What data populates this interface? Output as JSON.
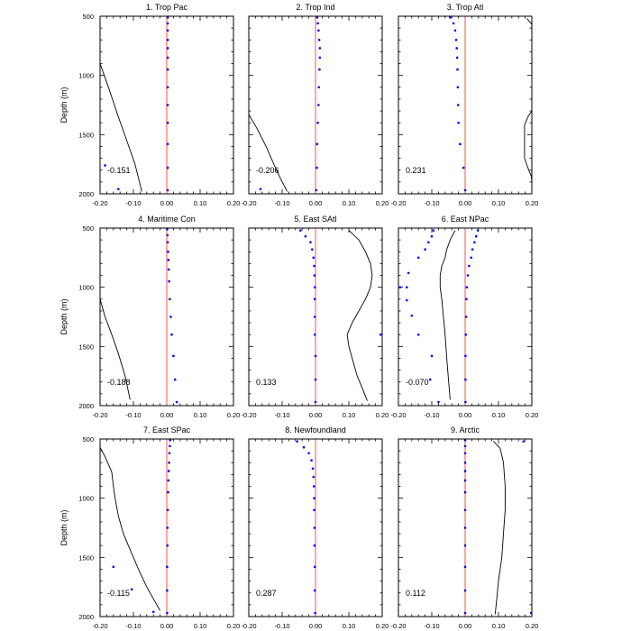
{
  "shared": {
    "ylabel": "Depth (m)",
    "xlim": [
      -0.2,
      0.2
    ],
    "ylim": [
      2000,
      500
    ],
    "xticks": [
      -0.2,
      -0.1,
      0.0,
      0.1,
      0.2
    ],
    "xtick_labels": [
      "-0.20",
      "-0.10",
      "0.00",
      "0.10",
      "0.20"
    ],
    "yticks": [
      500,
      1000,
      1500,
      2000
    ],
    "ytick_labels": [
      "500",
      "1000",
      "1500",
      "2000"
    ],
    "zero_line_color": "#ff4d4d",
    "dot_color": "#0000ff",
    "curve_color": "#000000"
  },
  "chart_data": [
    {
      "type": "scatter",
      "title": "1. Trop Pac",
      "annotation": "-0.151",
      "dots": [
        [
          0.003,
          510
        ],
        [
          0.003,
          560
        ],
        [
          0.003,
          620
        ],
        [
          0.003,
          700
        ],
        [
          0.003,
          770
        ],
        [
          0.003,
          850
        ],
        [
          0.003,
          950
        ],
        [
          0.003,
          1100
        ],
        [
          0.003,
          1250
        ],
        [
          0.003,
          1400
        ],
        [
          0.003,
          1580
        ],
        [
          0.003,
          1780
        ],
        [
          0.003,
          1970
        ],
        [
          -0.185,
          1760
        ],
        [
          -0.145,
          1960
        ]
      ],
      "curve": [
        [
          -0.2,
          900
        ],
        [
          -0.175,
          1100
        ],
        [
          -0.145,
          1350
        ],
        [
          -0.12,
          1550
        ],
        [
          -0.095,
          1750
        ],
        [
          -0.075,
          1980
        ]
      ]
    },
    {
      "type": "scatter",
      "title": "2. Trop Ind",
      "annotation": "-0.206",
      "dots": [
        [
          0.005,
          510
        ],
        [
          0.007,
          560
        ],
        [
          0.009,
          620
        ],
        [
          0.011,
          700
        ],
        [
          0.013,
          770
        ],
        [
          0.013,
          850
        ],
        [
          0.012,
          950
        ],
        [
          0.01,
          1100
        ],
        [
          0.009,
          1250
        ],
        [
          0.007,
          1400
        ],
        [
          0.005,
          1580
        ],
        [
          0.004,
          1780
        ],
        [
          0.002,
          1970
        ],
        [
          -0.165,
          1960
        ]
      ],
      "curve": [
        [
          -0.2,
          1330
        ],
        [
          -0.175,
          1450
        ],
        [
          -0.148,
          1600
        ],
        [
          -0.125,
          1750
        ],
        [
          -0.105,
          1870
        ],
        [
          -0.085,
          1980
        ]
      ]
    },
    {
      "type": "scatter",
      "title": "3. Trop Atl",
      "annotation": "0.231",
      "dots": [
        [
          -0.045,
          510
        ],
        [
          -0.035,
          560
        ],
        [
          -0.03,
          620
        ],
        [
          -0.027,
          700
        ],
        [
          -0.025,
          770
        ],
        [
          -0.024,
          850
        ],
        [
          -0.023,
          950
        ],
        [
          -0.022,
          1100
        ],
        [
          -0.021,
          1250
        ],
        [
          -0.02,
          1400
        ],
        [
          -0.015,
          1580
        ],
        [
          -0.005,
          1780
        ],
        [
          0.0,
          1970
        ]
      ],
      "curve": [
        [
          0.185,
          520
        ],
        [
          0.195,
          550
        ],
        [
          0.2,
          570
        ],
        null,
        [
          0.2,
          1300
        ],
        [
          0.188,
          1350
        ],
        [
          0.178,
          1420
        ],
        [
          0.178,
          1700
        ],
        [
          0.188,
          1780
        ],
        [
          0.198,
          1850
        ],
        [
          0.2,
          1890
        ]
      ]
    },
    {
      "type": "scatter",
      "title": "4. Maritime Con",
      "annotation": "-0.188",
      "dots": [
        [
          0.001,
          510
        ],
        [
          0.002,
          560
        ],
        [
          0.003,
          620
        ],
        [
          0.004,
          700
        ],
        [
          0.005,
          770
        ],
        [
          0.006,
          850
        ],
        [
          0.007,
          950
        ],
        [
          0.009,
          1100
        ],
        [
          0.012,
          1250
        ],
        [
          0.015,
          1400
        ],
        [
          0.02,
          1580
        ],
        [
          0.025,
          1780
        ],
        [
          0.03,
          1970
        ]
      ],
      "curve": [
        [
          -0.2,
          1100
        ],
        [
          -0.185,
          1250
        ],
        [
          -0.165,
          1400
        ],
        [
          -0.145,
          1560
        ],
        [
          -0.125,
          1750
        ],
        [
          -0.11,
          1950
        ]
      ]
    },
    {
      "type": "scatter",
      "title": "5. East SAtl",
      "annotation": "0.133",
      "dots": [
        [
          -0.045,
          520
        ],
        [
          -0.03,
          570
        ],
        [
          -0.015,
          620
        ],
        [
          -0.01,
          680
        ],
        [
          -0.006,
          750
        ],
        [
          -0.004,
          820
        ],
        [
          -0.003,
          900
        ],
        [
          -0.002,
          1000
        ],
        [
          -0.002,
          1100
        ],
        [
          -0.002,
          1250
        ],
        [
          -0.002,
          1400
        ],
        [
          0.0,
          1580
        ],
        [
          0.0,
          1780
        ],
        [
          0.0,
          1970
        ],
        [
          0.195,
          1400
        ]
      ],
      "curve": [
        [
          0.1,
          520
        ],
        [
          0.13,
          600
        ],
        [
          0.15,
          700
        ],
        [
          0.165,
          800
        ],
        [
          0.17,
          900
        ],
        [
          0.165,
          1000
        ],
        [
          0.15,
          1100
        ],
        [
          0.13,
          1200
        ],
        [
          0.11,
          1300
        ],
        [
          0.095,
          1400
        ],
        [
          0.1,
          1500
        ],
        [
          0.11,
          1600
        ],
        [
          0.125,
          1750
        ],
        [
          0.14,
          1850
        ],
        [
          0.155,
          1960
        ]
      ]
    },
    {
      "type": "scatter",
      "title": "6. East NPac",
      "annotation": "-0.070",
      "dots": [
        [
          -0.095,
          520
        ],
        [
          -0.1,
          570
        ],
        [
          -0.11,
          620
        ],
        [
          -0.12,
          680
        ],
        [
          -0.14,
          750
        ],
        [
          -0.17,
          880
        ],
        [
          -0.175,
          1000
        ],
        [
          -0.195,
          1000
        ],
        [
          -0.175,
          1110
        ],
        [
          -0.16,
          1240
        ],
        [
          -0.14,
          1400
        ],
        [
          -0.1,
          1580
        ],
        [
          -0.105,
          1780
        ],
        [
          -0.08,
          1970
        ],
        [
          0.038,
          520
        ],
        [
          0.033,
          570
        ],
        [
          0.028,
          620
        ],
        [
          0.022,
          680
        ],
        [
          0.018,
          750
        ],
        [
          0.012,
          820
        ],
        [
          0.008,
          900
        ],
        [
          0.005,
          1000
        ],
        [
          0.004,
          1100
        ],
        [
          0.003,
          1250
        ],
        [
          0.002,
          1400
        ],
        [
          0.001,
          1580
        ],
        [
          0.001,
          1780
        ],
        [
          0.001,
          1970
        ]
      ],
      "curve": [
        [
          -0.03,
          520
        ],
        [
          -0.045,
          600
        ],
        [
          -0.055,
          680
        ],
        [
          -0.06,
          750
        ],
        [
          -0.07,
          820
        ],
        [
          -0.075,
          900
        ],
        [
          -0.075,
          1000
        ],
        [
          -0.07,
          1100
        ],
        [
          -0.065,
          1250
        ],
        [
          -0.06,
          1400
        ],
        [
          -0.055,
          1600
        ],
        [
          -0.05,
          1780
        ],
        [
          -0.045,
          1950
        ]
      ]
    },
    {
      "type": "scatter",
      "title": "7. East SPac",
      "annotation": "-0.115",
      "dots": [
        [
          0.01,
          510
        ],
        [
          0.009,
          560
        ],
        [
          0.008,
          620
        ],
        [
          0.007,
          700
        ],
        [
          0.006,
          770
        ],
        [
          0.005,
          850
        ],
        [
          0.004,
          950
        ],
        [
          0.003,
          1100
        ],
        [
          0.002,
          1250
        ],
        [
          0.002,
          1400
        ],
        [
          0.001,
          1580
        ],
        [
          0.001,
          1780
        ],
        [
          0.001,
          1970
        ],
        [
          -0.16,
          1580
        ],
        [
          -0.105,
          1770
        ],
        [
          -0.04,
          1960
        ]
      ],
      "curve": [
        [
          -0.2,
          570
        ],
        [
          -0.185,
          650
        ],
        [
          -0.165,
          780
        ],
        [
          -0.16,
          900
        ],
        [
          -0.155,
          1000
        ],
        [
          -0.145,
          1150
        ],
        [
          -0.13,
          1300
        ],
        [
          -0.115,
          1400
        ],
        [
          -0.1,
          1500
        ],
        [
          -0.085,
          1600
        ],
        [
          -0.06,
          1750
        ],
        [
          -0.04,
          1850
        ],
        [
          -0.02,
          1950
        ]
      ]
    },
    {
      "type": "scatter",
      "title": "8. Newfoundland",
      "annotation": "0.287",
      "dots": [
        [
          -0.055,
          520
        ],
        [
          -0.035,
          570
        ],
        [
          -0.02,
          620
        ],
        [
          -0.012,
          680
        ],
        [
          -0.008,
          750
        ],
        [
          -0.006,
          820
        ],
        [
          -0.005,
          900
        ],
        [
          -0.004,
          1000
        ],
        [
          -0.004,
          1100
        ],
        [
          -0.003,
          1250
        ],
        [
          -0.003,
          1400
        ],
        [
          -0.002,
          1580
        ],
        [
          -0.002,
          1780
        ],
        [
          -0.001,
          1970
        ]
      ],
      "curve": []
    },
    {
      "type": "scatter",
      "title": "9. Arctic",
      "annotation": "0.112",
      "dots": [
        [
          0.175,
          520
        ],
        [
          0.0,
          510
        ],
        [
          0.0,
          560
        ],
        [
          0.0,
          620
        ],
        [
          0.0,
          700
        ],
        [
          0.0,
          770
        ],
        [
          0.0,
          850
        ],
        [
          0.0,
          950
        ],
        [
          0.0,
          1100
        ],
        [
          0.0,
          1250
        ],
        [
          0.0,
          1400
        ],
        [
          0.0,
          1580
        ],
        [
          0.0,
          1780
        ],
        [
          0.0,
          1970
        ],
        [
          0.198,
          1970
        ]
      ],
      "curve": [
        [
          0.085,
          520
        ],
        [
          0.105,
          580
        ],
        [
          0.115,
          700
        ],
        [
          0.12,
          900
        ],
        [
          0.12,
          1100
        ],
        [
          0.115,
          1300
        ],
        [
          0.11,
          1500
        ],
        [
          0.1,
          1700
        ],
        [
          0.095,
          1850
        ],
        [
          0.09,
          1980
        ]
      ]
    }
  ]
}
